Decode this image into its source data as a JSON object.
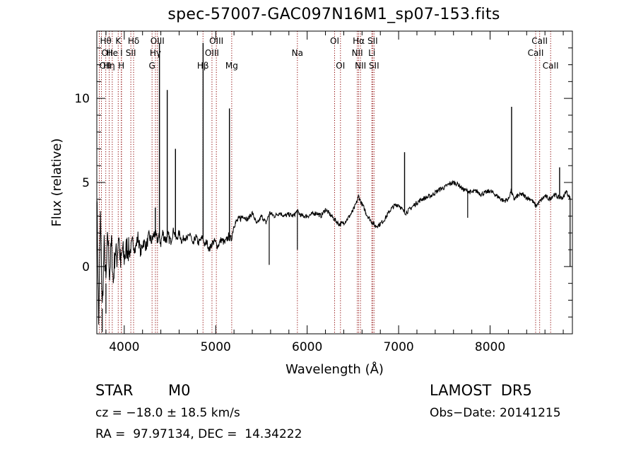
{
  "chart_data": {
    "type": "line",
    "title": "spec-57007-GAC097N16M1_sp07-153.fits",
    "xlabel": "Wavelength (Å)",
    "ylabel": "Flux (relative)",
    "xlim": [
      3700,
      8900
    ],
    "ylim": [
      -4,
      14
    ],
    "x_ticks": [
      4000,
      5000,
      6000,
      7000,
      8000
    ],
    "y_ticks": [
      0,
      5,
      10
    ],
    "grid": false,
    "line_color": "#000000",
    "marker_color": "#8b0000",
    "series": [
      {
        "x": [
          3700,
          3720,
          3740,
          3760,
          3780,
          3800,
          3820,
          3840,
          3860,
          3880,
          3900,
          3920,
          3940,
          3960,
          3980,
          4000,
          4030,
          4060,
          4090,
          4120,
          4150,
          4180,
          4210,
          4240,
          4270,
          4300,
          4330,
          4360,
          4380,
          4400,
          4420,
          4450,
          4480,
          4510,
          4540,
          4570,
          4600,
          4630,
          4660,
          4690,
          4720,
          4750,
          4780,
          4810,
          4840,
          4860,
          4880,
          4900,
          4930,
          4960,
          4990,
          5020,
          5060,
          5100,
          5140,
          5170,
          5200,
          5250,
          5300,
          5350,
          5400,
          5450,
          5500,
          5550,
          5590,
          5640,
          5700,
          5750,
          5800,
          5850,
          5890,
          5920,
          5950,
          6000,
          6050,
          6100,
          6150,
          6200,
          6250,
          6300,
          6350,
          6400,
          6450,
          6500,
          6540,
          6563,
          6590,
          6620,
          6650,
          6700,
          6750,
          6790,
          6830,
          6870,
          6900,
          6950,
          7000,
          7050,
          7080,
          7120,
          7160,
          7200,
          7250,
          7300,
          7350,
          7400,
          7450,
          7500,
          7550,
          7600,
          7650,
          7700,
          7750,
          7800,
          7850,
          7900,
          7950,
          8000,
          8050,
          8100,
          8150,
          8200,
          8230,
          8260,
          8300,
          8350,
          8400,
          8450,
          8500,
          8550,
          8600,
          8650,
          8700,
          8750,
          8800,
          8830,
          8860,
          8880
        ],
        "y": [
          4.8,
          -3.5,
          3.0,
          -2.5,
          1.2,
          -1.0,
          2.0,
          -0.5,
          1.5,
          -1.0,
          1.0,
          0.5,
          2.0,
          0.0,
          1.0,
          0.5,
          1.2,
          0.8,
          1.5,
          1.0,
          1.8,
          0.8,
          1.5,
          1.2,
          1.8,
          1.5,
          2.0,
          1.6,
          1.8,
          1.4,
          2.0,
          1.6,
          1.8,
          1.5,
          2.2,
          1.6,
          2.0,
          1.5,
          1.8,
          1.6,
          2.0,
          1.2,
          1.8,
          1.4,
          1.6,
          1.8,
          1.2,
          1.5,
          1.0,
          1.4,
          1.5,
          1.2,
          1.6,
          1.4,
          1.8,
          1.6,
          2.5,
          2.8,
          3.0,
          2.8,
          3.2,
          2.5,
          3.0,
          2.6,
          3.2,
          3.0,
          3.2,
          3.0,
          3.1,
          3.0,
          3.3,
          3.1,
          3.0,
          3.0,
          3.1,
          3.2,
          3.0,
          3.4,
          3.1,
          2.8,
          2.5,
          2.6,
          2.9,
          3.3,
          3.8,
          4.2,
          3.8,
          3.5,
          3.1,
          2.7,
          2.4,
          2.5,
          2.7,
          3.0,
          3.3,
          3.6,
          3.7,
          3.3,
          3.2,
          3.4,
          3.6,
          3.8,
          4.0,
          4.1,
          4.2,
          4.4,
          4.6,
          4.7,
          4.9,
          5.0,
          4.9,
          4.6,
          4.5,
          4.4,
          4.5,
          4.3,
          4.4,
          4.5,
          4.3,
          4.1,
          3.9,
          4.0,
          4.5,
          4.0,
          4.2,
          4.3,
          4.1,
          4.0,
          3.6,
          3.9,
          4.2,
          4.0,
          4.3,
          4.1,
          4.1,
          4.5,
          4.2,
          4.0
        ]
      }
    ],
    "spikes": [
      {
        "x": 4340,
        "y": 3.5
      },
      {
        "x": 4385,
        "y": 13.3
      },
      {
        "x": 4470,
        "y": 10.5
      },
      {
        "x": 4560,
        "y": 7.0
      },
      {
        "x": 4862,
        "y": 13.3
      },
      {
        "x": 5150,
        "y": 9.4
      },
      {
        "x": 7065,
        "y": 6.8
      },
      {
        "x": 8235,
        "y": 9.5
      },
      {
        "x": 8760,
        "y": 5.9
      }
    ],
    "dips": [
      {
        "x": 3760,
        "y": -3.9
      },
      {
        "x": 3800,
        "y": -2.8
      },
      {
        "x": 5585,
        "y": 0.1
      },
      {
        "x": 5893,
        "y": 1.0
      },
      {
        "x": 7755,
        "y": 2.9
      },
      {
        "x": 8875,
        "y": 0.0
      }
    ],
    "line_markers": [
      {
        "x": 3727,
        "label": "OII",
        "row": 2,
        "align": "start"
      },
      {
        "x": 3750,
        "label": "OII",
        "row": 1,
        "align": "start"
      },
      {
        "x": 3798,
        "label": "Hθ",
        "row": 0,
        "align": "center"
      },
      {
        "x": 3835,
        "label": "Hη",
        "row": 2,
        "align": "center"
      },
      {
        "x": 3869,
        "label": "He",
        "row": 1,
        "align": "center"
      },
      {
        "x": 3934,
        "label": "K",
        "row": 0,
        "align": "center"
      },
      {
        "x": 3968,
        "label": "H",
        "row": 2,
        "align": "center"
      },
      {
        "x": 3970,
        "label": "I",
        "row": 1,
        "align": "center"
      },
      {
        "x": 4072,
        "label": "SII",
        "row": 1,
        "align": "center"
      },
      {
        "x": 4102,
        "label": "Hδ",
        "row": 0,
        "align": "center"
      },
      {
        "x": 4304,
        "label": "G",
        "row": 2,
        "align": "center"
      },
      {
        "x": 4341,
        "label": "Hγ",
        "row": 1,
        "align": "center"
      },
      {
        "x": 4363,
        "label": "OIII",
        "row": 0,
        "align": "center"
      },
      {
        "x": 4861,
        "label": "Hβ",
        "row": 2,
        "align": "center"
      },
      {
        "x": 4959,
        "label": "OIII",
        "row": 1,
        "align": "center"
      },
      {
        "x": 5007,
        "label": "OIII",
        "row": 0,
        "align": "center"
      },
      {
        "x": 5175,
        "label": "Mg",
        "row": 2,
        "align": "center"
      },
      {
        "x": 5893,
        "label": "Na",
        "row": 1,
        "align": "center"
      },
      {
        "x": 6300,
        "label": "OI",
        "row": 0,
        "align": "center"
      },
      {
        "x": 6364,
        "label": "OI",
        "row": 2,
        "align": "center"
      },
      {
        "x": 6548,
        "label": "NII",
        "row": 1,
        "align": "center"
      },
      {
        "x": 6563,
        "label": "Hα",
        "row": 0,
        "align": "center"
      },
      {
        "x": 6583,
        "label": "NII",
        "row": 2,
        "align": "center"
      },
      {
        "x": 6707,
        "label": "Li",
        "row": 1,
        "align": "center"
      },
      {
        "x": 6716,
        "label": "SII",
        "row": 0,
        "align": "center"
      },
      {
        "x": 6731,
        "label": "SII",
        "row": 2,
        "align": "center"
      },
      {
        "x": 8498,
        "label": "CaII",
        "row": 1,
        "align": "center"
      },
      {
        "x": 8542,
        "label": "CaII",
        "row": 0,
        "align": "center"
      },
      {
        "x": 8662,
        "label": "CaII",
        "row": 2,
        "align": "center"
      }
    ]
  },
  "info": {
    "object_class": "STAR",
    "subclass": "M0",
    "survey": "LAMOST  DR5",
    "cz": "cz = −18.0 ± 18.5 km/s",
    "obs_date": "Obs−Date: 20141215",
    "radec": "RA =  97.97134, DEC =  14.34222"
  }
}
